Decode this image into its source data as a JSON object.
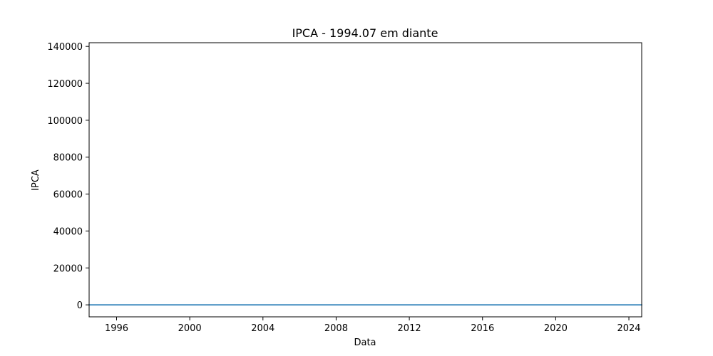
{
  "chart_data": {
    "type": "line",
    "title": "IPCA - 1994.07 em diante",
    "xlabel": "Data",
    "ylabel": "IPCA",
    "xlim": [
      1994.5,
      2024.7
    ],
    "ylim": [
      -6500,
      142000
    ],
    "x_ticks": [
      1996,
      2000,
      2004,
      2008,
      2012,
      2016,
      2020,
      2024
    ],
    "x_tick_labels": [
      "1996",
      "2000",
      "2004",
      "2008",
      "2012",
      "2016",
      "2020",
      "2024"
    ],
    "y_ticks": [
      0,
      20000,
      40000,
      60000,
      80000,
      100000,
      120000,
      140000
    ],
    "y_tick_labels": [
      "0",
      "20000",
      "40000",
      "60000",
      "80000",
      "100000",
      "120000",
      "140000"
    ],
    "grid": false,
    "series": [
      {
        "name": "IPCA",
        "color": "#1f77b4",
        "x": [
          1994.5,
          1998,
          2002,
          2006,
          2010,
          2014,
          2018,
          2022,
          2024.7
        ],
        "values": [
          1,
          1,
          1,
          1,
          1,
          1,
          1,
          1,
          1
        ]
      }
    ]
  }
}
